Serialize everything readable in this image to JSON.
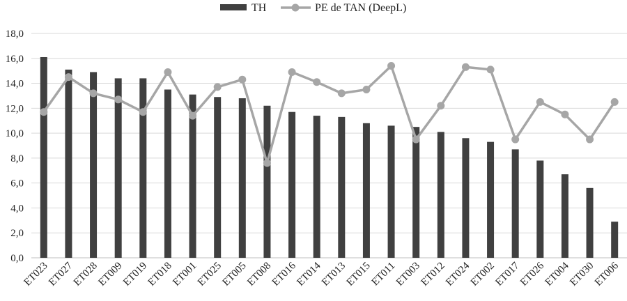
{
  "chart_data": {
    "type": "bar",
    "title": "",
    "xlabel": "",
    "ylabel": "",
    "ylim": [
      0,
      18
    ],
    "yticks": [
      "0,0",
      "2,0",
      "4,0",
      "6,0",
      "8,0",
      "10,0",
      "12,0",
      "14,0",
      "16,0",
      "18,0"
    ],
    "grid": true,
    "legend_position": "top-center",
    "categories": [
      "ET023",
      "ET027",
      "ET028",
      "ET009",
      "ET019",
      "ET018",
      "ET001",
      "ET025",
      "ET005",
      "ET008",
      "ET016",
      "ET014",
      "ET013",
      "ET015",
      "ET011",
      "ET003",
      "ET012",
      "ET024",
      "ET002",
      "ET017",
      "ET026",
      "ET004",
      "ET030",
      "ET006"
    ],
    "series": [
      {
        "name": "TH",
        "type": "bar",
        "color": "#404040",
        "values": [
          16.1,
          15.1,
          14.9,
          14.4,
          14.4,
          13.5,
          13.1,
          12.9,
          12.8,
          12.2,
          11.7,
          11.4,
          11.3,
          10.8,
          10.6,
          10.5,
          10.1,
          9.6,
          9.3,
          8.7,
          7.8,
          6.7,
          5.6,
          2.9
        ]
      },
      {
        "name": "PE de TAN (DeepL)",
        "type": "line",
        "color": "#a6a6a6",
        "values": [
          11.7,
          14.5,
          13.2,
          12.7,
          11.7,
          14.9,
          11.4,
          13.7,
          14.3,
          7.6,
          14.9,
          14.1,
          13.2,
          13.5,
          15.4,
          9.5,
          12.2,
          15.3,
          15.1,
          9.5,
          12.5,
          11.5,
          9.5,
          12.5
        ]
      }
    ]
  }
}
